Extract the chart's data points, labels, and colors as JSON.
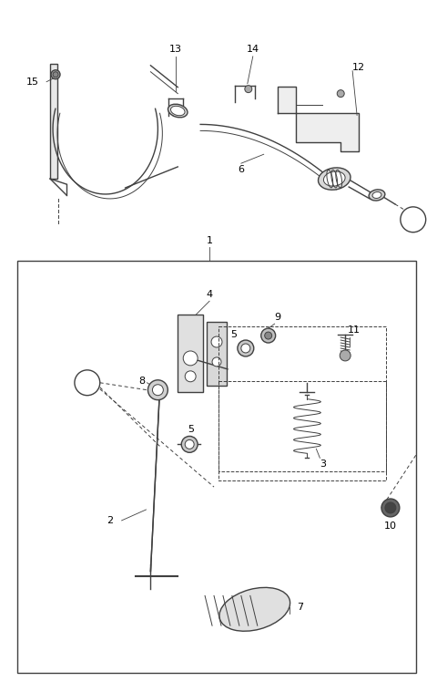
{
  "bg_color": "#ffffff",
  "line_color": "#404040",
  "fig_width": 4.8,
  "fig_height": 7.59,
  "dpi": 100
}
